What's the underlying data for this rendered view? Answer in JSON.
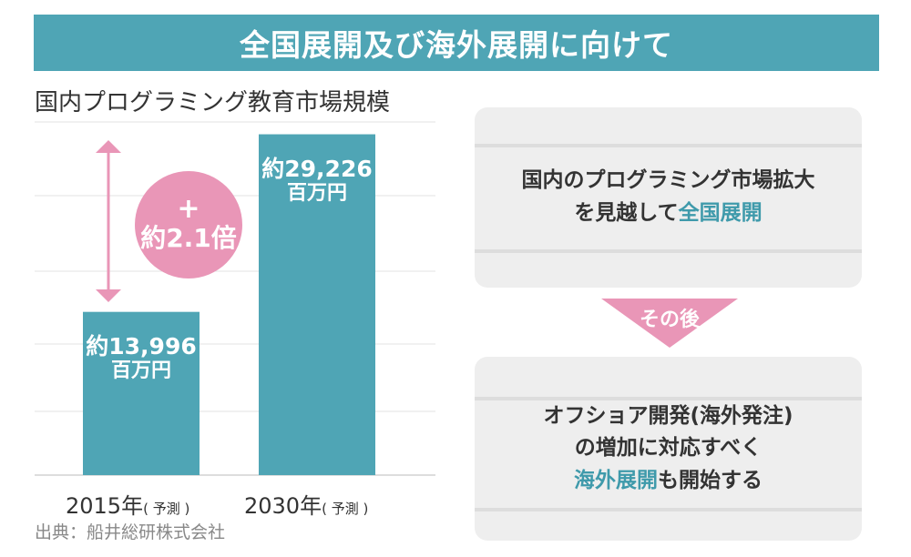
{
  "banner": {
    "title": "全国展開及び海外展開に向けて"
  },
  "colors": {
    "accent": "#4fa5b5",
    "pink": "#e996b7",
    "box": "#eeeeee"
  },
  "chart_data": {
    "type": "bar",
    "title": "国内プログラミング教育市場規模",
    "categories": [
      "2015年",
      "2030年"
    ],
    "category_notes": [
      "( 予測 )",
      "( 予測 )"
    ],
    "values": [
      13996,
      29226
    ],
    "value_labels": [
      {
        "prefix": "約",
        "number": "13,996",
        "unit": "百万円"
      },
      {
        "prefix": "約",
        "number": "29,226",
        "unit": "百万円"
      }
    ],
    "unit": "百万円",
    "ylim": [
      0,
      32000
    ],
    "grid": true,
    "annotation": {
      "plus": "+",
      "multiplier": "約2.1倍"
    }
  },
  "source": "出典：船井総研株式会社",
  "box1": {
    "line1": "国内のプログラミング市場拡大",
    "line2_prefix": "を見越して",
    "line2_highlight": "全国展開"
  },
  "arrow": {
    "label": "その後"
  },
  "box2": {
    "line1": "オフショア開発(海外発注)",
    "line2": "の増加に対応すべく",
    "line3_highlight": "海外展開",
    "line3_suffix": "も開始する"
  }
}
